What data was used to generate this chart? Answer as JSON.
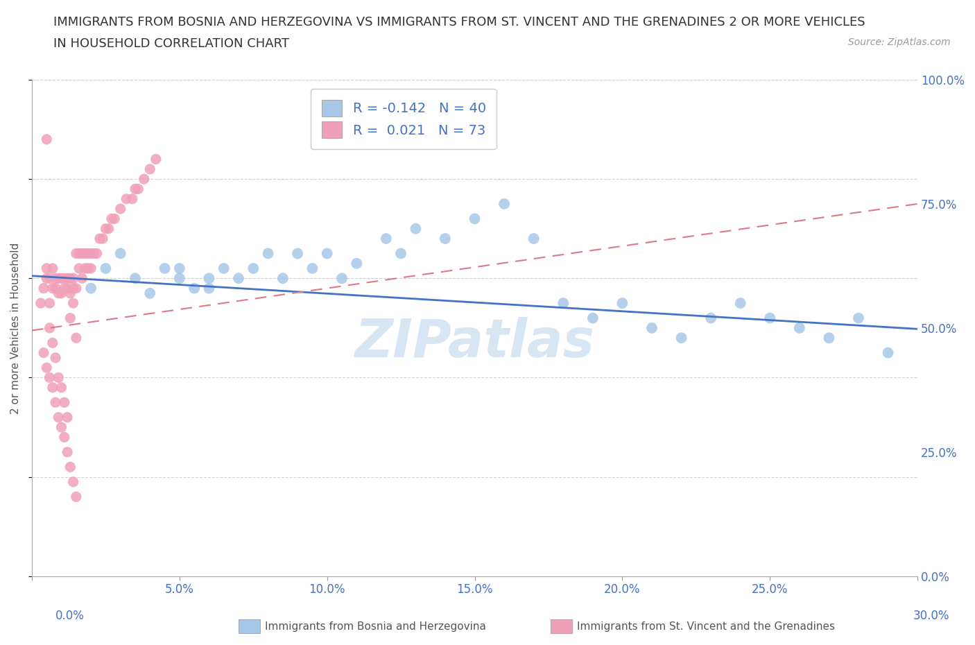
{
  "title_line1": "IMMIGRANTS FROM BOSNIA AND HERZEGOVINA VS IMMIGRANTS FROM ST. VINCENT AND THE GRENADINES 2 OR MORE VEHICLES",
  "title_line2": "IN HOUSEHOLD CORRELATION CHART",
  "source_text": "Source: ZipAtlas.com",
  "ylabel": "2 or more Vehicles in Household",
  "legend_label1": "Immigrants from Bosnia and Herzegovina",
  "legend_label2": "Immigrants from St. Vincent and the Grenadines",
  "R1": -0.142,
  "N1": 40,
  "R2": 0.021,
  "N2": 73,
  "color_blue": "#a8c8e8",
  "color_pink": "#f0a0b8",
  "color_blue_line": "#4472c4",
  "color_pink_line": "#e07888",
  "watermark": "ZIPatlas",
  "xlim": [
    0.0,
    0.3
  ],
  "ylim": [
    0.0,
    1.0
  ],
  "xtick_vals": [
    0.0,
    0.05,
    0.1,
    0.15,
    0.2,
    0.25,
    0.3
  ],
  "xtick_labels": [
    "",
    "5.0%",
    "10.0%",
    "15.0%",
    "20.0%",
    "25.0%",
    ""
  ],
  "ytick_vals": [
    0.0,
    0.25,
    0.5,
    0.75,
    1.0
  ],
  "ytick_labels": [
    "0.0%",
    "25.0%",
    "50.0%",
    "75.0%",
    "100.0%"
  ],
  "blue_scatter_x": [
    0.02,
    0.025,
    0.03,
    0.035,
    0.04,
    0.045,
    0.05,
    0.05,
    0.055,
    0.06,
    0.06,
    0.065,
    0.07,
    0.075,
    0.08,
    0.085,
    0.09,
    0.095,
    0.1,
    0.105,
    0.11,
    0.12,
    0.125,
    0.13,
    0.14,
    0.15,
    0.16,
    0.17,
    0.18,
    0.19,
    0.2,
    0.21,
    0.22,
    0.23,
    0.24,
    0.25,
    0.26,
    0.27,
    0.28,
    0.29
  ],
  "blue_scatter_y": [
    0.58,
    0.62,
    0.65,
    0.6,
    0.57,
    0.62,
    0.6,
    0.62,
    0.58,
    0.6,
    0.58,
    0.62,
    0.6,
    0.62,
    0.65,
    0.6,
    0.65,
    0.62,
    0.65,
    0.6,
    0.63,
    0.68,
    0.65,
    0.7,
    0.68,
    0.72,
    0.75,
    0.68,
    0.55,
    0.52,
    0.55,
    0.5,
    0.48,
    0.52,
    0.55,
    0.52,
    0.5,
    0.48,
    0.52,
    0.45
  ],
  "pink_scatter_x": [
    0.003,
    0.004,
    0.005,
    0.005,
    0.006,
    0.006,
    0.007,
    0.007,
    0.008,
    0.008,
    0.009,
    0.009,
    0.01,
    0.01,
    0.011,
    0.011,
    0.012,
    0.012,
    0.013,
    0.013,
    0.014,
    0.014,
    0.015,
    0.015,
    0.016,
    0.016,
    0.017,
    0.017,
    0.018,
    0.018,
    0.019,
    0.019,
    0.02,
    0.02,
    0.021,
    0.022,
    0.023,
    0.024,
    0.025,
    0.026,
    0.027,
    0.028,
    0.03,
    0.032,
    0.034,
    0.035,
    0.036,
    0.038,
    0.04,
    0.042,
    0.004,
    0.005,
    0.006,
    0.007,
    0.008,
    0.009,
    0.01,
    0.011,
    0.012,
    0.013,
    0.014,
    0.015,
    0.005,
    0.006,
    0.007,
    0.008,
    0.009,
    0.01,
    0.011,
    0.012,
    0.013,
    0.014,
    0.015
  ],
  "pink_scatter_y": [
    0.55,
    0.58,
    0.6,
    0.62,
    0.55,
    0.6,
    0.58,
    0.62,
    0.58,
    0.6,
    0.57,
    0.6,
    0.57,
    0.6,
    0.58,
    0.6,
    0.58,
    0.6,
    0.57,
    0.6,
    0.58,
    0.6,
    0.58,
    0.65,
    0.62,
    0.65,
    0.6,
    0.65,
    0.62,
    0.65,
    0.62,
    0.65,
    0.62,
    0.65,
    0.65,
    0.65,
    0.68,
    0.68,
    0.7,
    0.7,
    0.72,
    0.72,
    0.74,
    0.76,
    0.76,
    0.78,
    0.78,
    0.8,
    0.82,
    0.84,
    0.45,
    0.42,
    0.4,
    0.38,
    0.35,
    0.32,
    0.3,
    0.28,
    0.25,
    0.22,
    0.19,
    0.16,
    0.88,
    0.5,
    0.47,
    0.44,
    0.4,
    0.38,
    0.35,
    0.32,
    0.52,
    0.55,
    0.48
  ],
  "blue_trend_x": [
    0.0,
    0.3
  ],
  "blue_trend_y": [
    0.605,
    0.498
  ],
  "pink_trend_x": [
    0.0,
    0.3
  ],
  "pink_trend_y": [
    0.495,
    0.75
  ]
}
